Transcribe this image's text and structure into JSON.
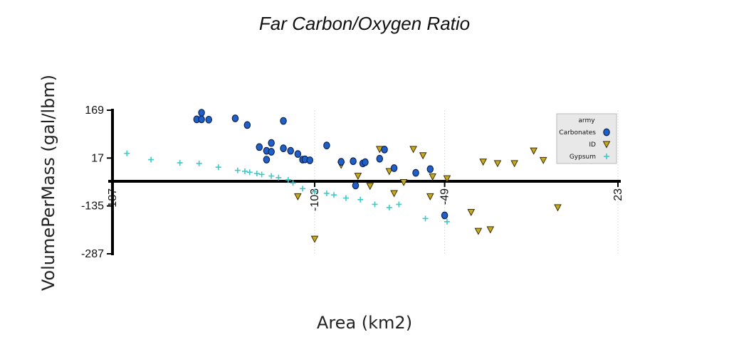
{
  "chart_data": {
    "type": "scatter",
    "title": "Far Carbon/Oxygen Ratio",
    "xlabel": "Area (km2)",
    "ylabel": "VolumePerMass (gal/lbm)",
    "xlim": [
      -187,
      23
    ],
    "ylim": [
      -287,
      169
    ],
    "x_ticks": [
      "-187",
      "-103",
      "-49",
      "23"
    ],
    "y_ticks": [
      "169",
      "17",
      "-135",
      "-287"
    ],
    "grid": true,
    "legend": {
      "title": "army",
      "position": "top-right"
    },
    "series": [
      {
        "name": "Carbonates",
        "marker": "circle",
        "color": "#1f5fc8",
        "points": [
          [
            -152,
            140
          ],
          [
            -150,
            140
          ],
          [
            -150,
            161
          ],
          [
            -147,
            139
          ],
          [
            -136,
            143
          ],
          [
            -131,
            122
          ],
          [
            -126,
            52
          ],
          [
            -123,
            40
          ],
          [
            -123,
            12
          ],
          [
            -121,
            37
          ],
          [
            -121,
            65
          ],
          [
            -116,
            48
          ],
          [
            -116,
            135
          ],
          [
            -113,
            40
          ],
          [
            -110,
            30
          ],
          [
            -108,
            12
          ],
          [
            -107,
            13
          ],
          [
            -105,
            10
          ],
          [
            -98,
            57
          ],
          [
            -92,
            5
          ],
          [
            -87,
            7
          ],
          [
            -86,
            -70
          ],
          [
            -83,
            0
          ],
          [
            -82,
            4
          ],
          [
            -76,
            15
          ],
          [
            -74,
            44
          ],
          [
            -70,
            -15
          ],
          [
            -61,
            -30
          ],
          [
            -55,
            -18
          ],
          [
            -49,
            -165
          ]
        ]
      },
      {
        "name": "ID",
        "marker": "triangle-down",
        "color": "#c8a81e",
        "points": [
          [
            -110,
            -105
          ],
          [
            -103,
            -240
          ],
          [
            -92,
            -5
          ],
          [
            -85,
            -40
          ],
          [
            -80,
            -72
          ],
          [
            -76,
            45
          ],
          [
            -72,
            -25
          ],
          [
            -70,
            -95
          ],
          [
            -66,
            -60
          ],
          [
            -62,
            45
          ],
          [
            -58,
            25
          ],
          [
            -55,
            -105
          ],
          [
            -48,
            -48
          ],
          [
            -38,
            -155
          ],
          [
            -35,
            -215
          ],
          [
            -33,
            5
          ],
          [
            -30,
            -210
          ],
          [
            -27,
            0
          ],
          [
            -20,
            0
          ],
          [
            -12,
            40
          ],
          [
            -8,
            10
          ],
          [
            10,
            25
          ],
          [
            12,
            10
          ],
          [
            -2,
            -140
          ],
          [
            -54,
            -42
          ]
        ]
      },
      {
        "name": "Gypsum",
        "marker": "plus",
        "color": "#3ec8c8",
        "points": [
          [
            -181,
            32
          ],
          [
            -171,
            12
          ],
          [
            -159,
            2
          ],
          [
            -151,
            0
          ],
          [
            -143,
            -12
          ],
          [
            -135,
            -22
          ],
          [
            -132,
            -25
          ],
          [
            -130,
            -28
          ],
          [
            -127,
            -32
          ],
          [
            -125,
            -35
          ],
          [
            -121,
            -40
          ],
          [
            -118,
            -45
          ],
          [
            -114,
            -52
          ],
          [
            -112,
            -62
          ],
          [
            -108,
            -80
          ],
          [
            -103,
            -90
          ],
          [
            -98,
            -95
          ],
          [
            -95,
            -100
          ],
          [
            -90,
            -110
          ],
          [
            -84,
            -115
          ],
          [
            -78,
            -130
          ],
          [
            -72,
            -140
          ],
          [
            -68,
            -130
          ],
          [
            -57,
            -175
          ],
          [
            -48,
            -185
          ]
        ]
      }
    ]
  }
}
